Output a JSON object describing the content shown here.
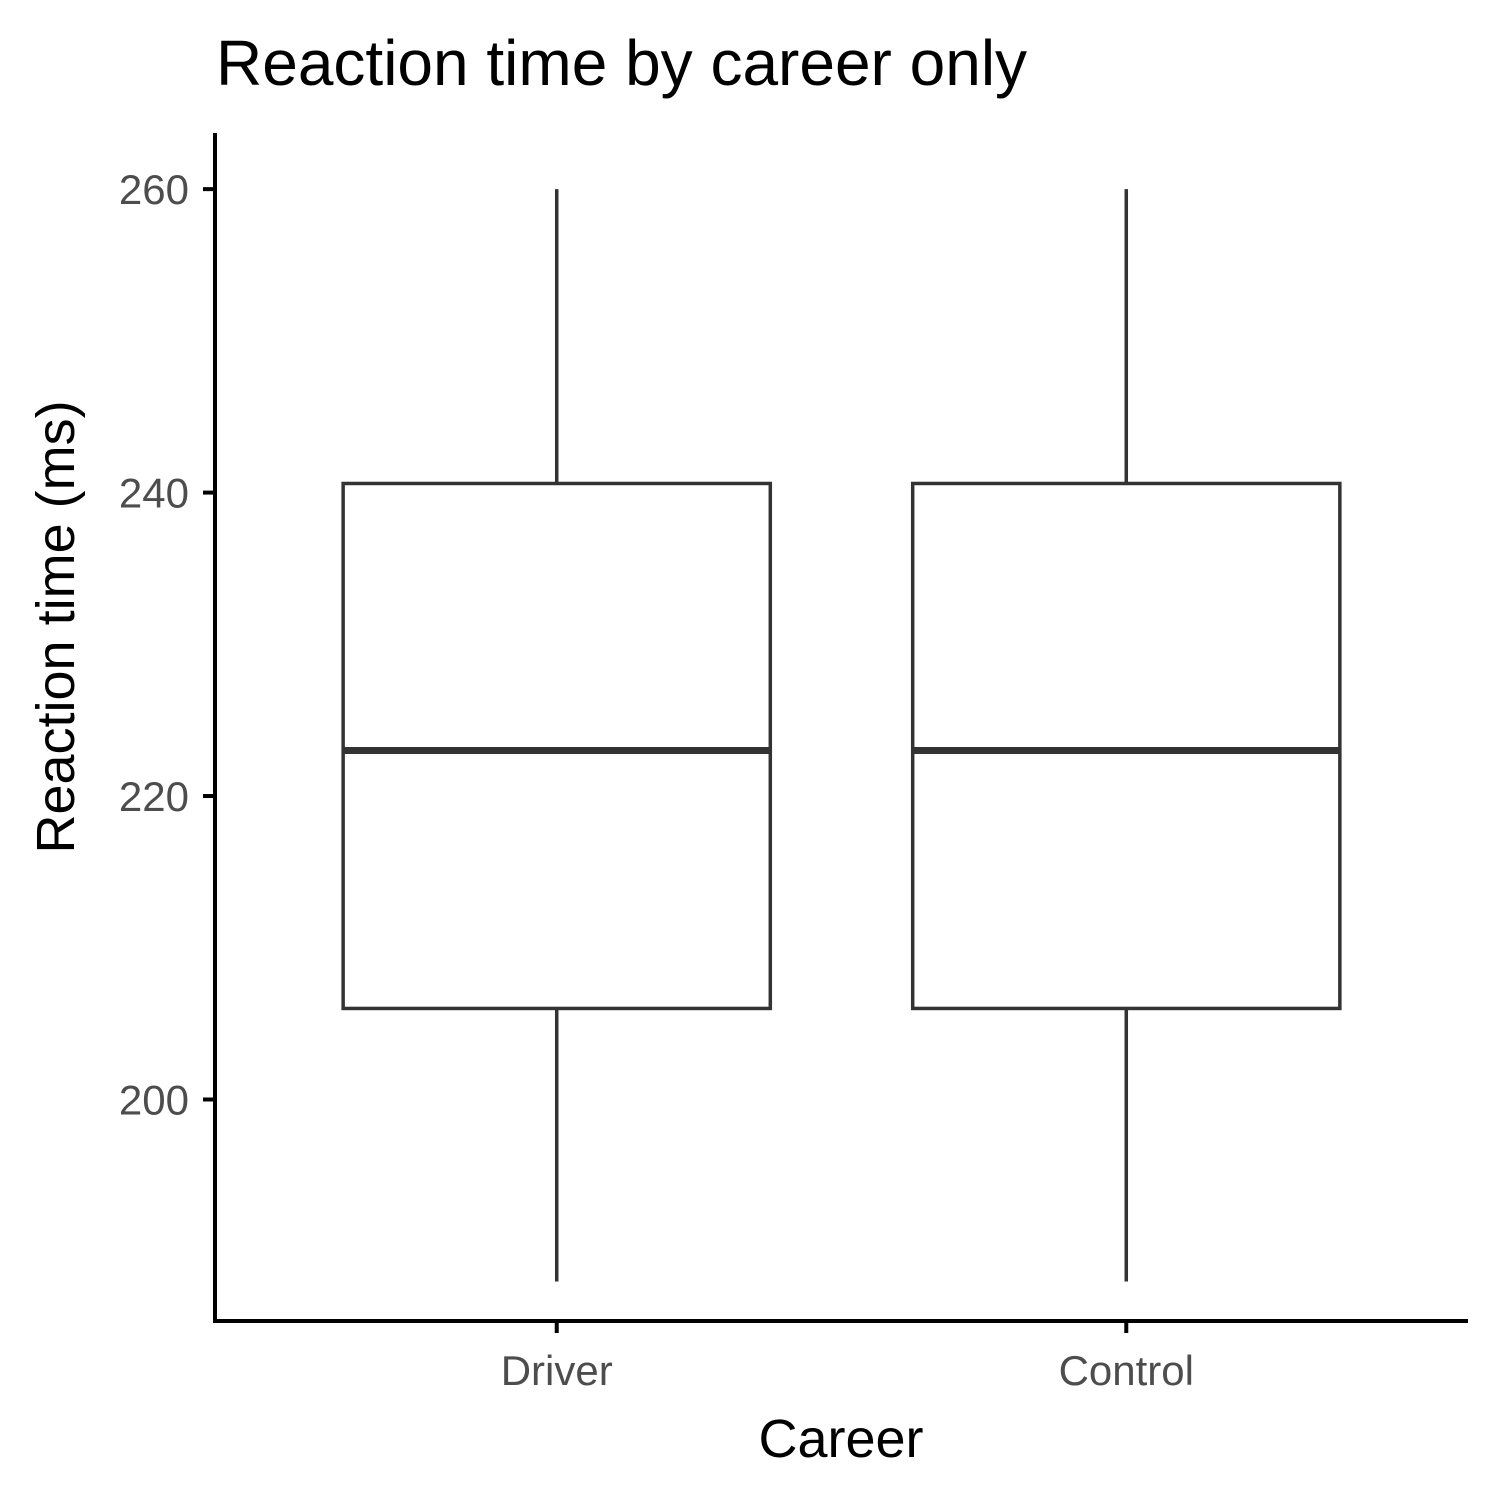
{
  "chart_data": {
    "type": "boxplot",
    "title": "Reaction time by career only",
    "xlabel": "Career",
    "ylabel": "Reaction time (ms)",
    "categories": [
      "Driver",
      "Control"
    ],
    "boxes": [
      {
        "category": "Driver",
        "whisker_low": 188,
        "q1": 206,
        "median": 223,
        "q3": 240.6,
        "whisker_high": 260
      },
      {
        "category": "Control",
        "whisker_low": 188,
        "q1": 206,
        "median": 223,
        "q3": 240.6,
        "whisker_high": 260
      }
    ],
    "yticks": [
      200,
      220,
      240,
      260
    ],
    "ylim": [
      185.4,
      263.7
    ],
    "grid": false,
    "legend": "none"
  }
}
